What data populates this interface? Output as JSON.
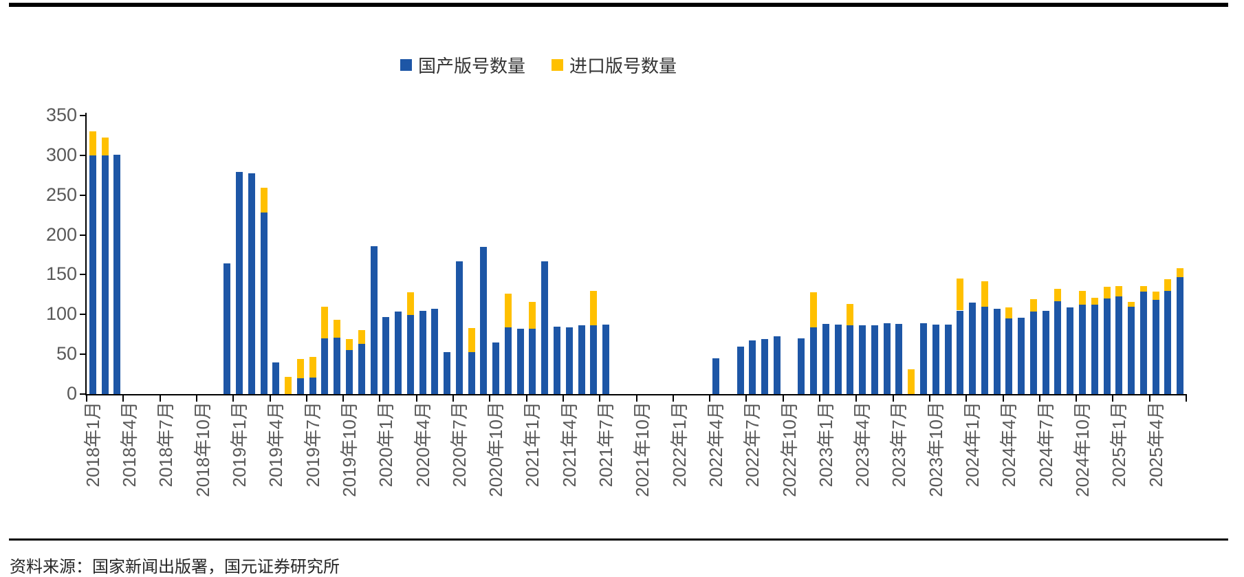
{
  "legend": {
    "items": [
      {
        "label": "国产版号数量",
        "color": "#1D56A6"
      },
      {
        "label": "进口版号数量",
        "color": "#FFC000"
      }
    ]
  },
  "source_note": "资料来源：国家新闻出版署，国元证券研究所",
  "chart_data": {
    "type": "bar",
    "stacked": true,
    "grid": false,
    "legend_position": "top-center",
    "title": "",
    "xlabel": "",
    "ylabel": "",
    "ylim": [
      0,
      350
    ],
    "ytick_step": 50,
    "ytick_labels": [
      "0",
      "50",
      "100",
      "150",
      "200",
      "250",
      "300",
      "350"
    ],
    "xtick_label_every": 3,
    "categories": [
      "2018年1月",
      "2018年2月",
      "2018年3月",
      "2018年4月",
      "2018年5月",
      "2018年6月",
      "2018年7月",
      "2018年8月",
      "2018年9月",
      "2018年10月",
      "2018年11月",
      "2018年12月",
      "2019年1月",
      "2019年2月",
      "2019年3月",
      "2019年4月",
      "2019年5月",
      "2019年6月",
      "2019年7月",
      "2019年8月",
      "2019年9月",
      "2019年10月",
      "2019年11月",
      "2019年12月",
      "2020年1月",
      "2020年2月",
      "2020年3月",
      "2020年4月",
      "2020年5月",
      "2020年6月",
      "2020年7月",
      "2020年8月",
      "2020年9月",
      "2020年10月",
      "2020年11月",
      "2020年12月",
      "2021年1月",
      "2021年2月",
      "2021年3月",
      "2021年4月",
      "2021年5月",
      "2021年6月",
      "2021年7月",
      "2021年8月",
      "2021年9月",
      "2021年10月",
      "2021年11月",
      "2021年12月",
      "2022年1月",
      "2022年2月",
      "2022年3月",
      "2022年4月",
      "2022年5月",
      "2022年6月",
      "2022年7月",
      "2022年8月",
      "2022年9月",
      "2022年10月",
      "2022年11月",
      "2022年12月",
      "2023年1月",
      "2023年2月",
      "2023年3月",
      "2023年4月",
      "2023年5月",
      "2023年6月",
      "2023年7月",
      "2023年8月",
      "2023年9月",
      "2023年10月",
      "2023年11月",
      "2023年12月",
      "2024年1月",
      "2024年2月",
      "2024年3月",
      "2024年4月",
      "2024年5月",
      "2024年6月",
      "2024年7月",
      "2024年8月",
      "2024年9月",
      "2024年10月",
      "2024年11月",
      "2024年12月",
      "2025年1月",
      "2025年2月",
      "2025年3月",
      "2025年4月",
      "2025年5月",
      "2025年6月"
    ],
    "series": [
      {
        "name": "国产版号数量",
        "color": "#1D56A6",
        "values": [
          300,
          300,
          301,
          0,
          0,
          0,
          0,
          0,
          0,
          0,
          0,
          164,
          279,
          277,
          228,
          40,
          0,
          20,
          21,
          70,
          71,
          55,
          63,
          186,
          97,
          104,
          99,
          105,
          107,
          53,
          167,
          53,
          185,
          65,
          84,
          82,
          82,
          167,
          85,
          84,
          86,
          86,
          87,
          0,
          0,
          0,
          0,
          0,
          0,
          0,
          0,
          45,
          0,
          60,
          67,
          69,
          73,
          0,
          70,
          84,
          88,
          87,
          86,
          86,
          86,
          89,
          88,
          0,
          89,
          87,
          87,
          105,
          115,
          110,
          107,
          95,
          96,
          104,
          105,
          117,
          109,
          112,
          112,
          120,
          123,
          110,
          129,
          118,
          130,
          147
        ]
      },
      {
        "name": "进口版号数量",
        "color": "#FFC000",
        "values": [
          30,
          22,
          0,
          0,
          0,
          0,
          0,
          0,
          0,
          0,
          0,
          0,
          0,
          0,
          31,
          0,
          22,
          24,
          26,
          40,
          22,
          14,
          17,
          0,
          0,
          0,
          29,
          0,
          0,
          0,
          0,
          30,
          0,
          0,
          42,
          0,
          34,
          0,
          0,
          0,
          0,
          44,
          0,
          0,
          0,
          0,
          0,
          0,
          0,
          0,
          0,
          0,
          0,
          0,
          0,
          0,
          0,
          0,
          0,
          44,
          0,
          0,
          27,
          0,
          0,
          0,
          0,
          31,
          0,
          0,
          0,
          40,
          0,
          32,
          0,
          14,
          0,
          15,
          0,
          15,
          0,
          18,
          9,
          15,
          13,
          6,
          7,
          11,
          14,
          11
        ]
      }
    ]
  }
}
